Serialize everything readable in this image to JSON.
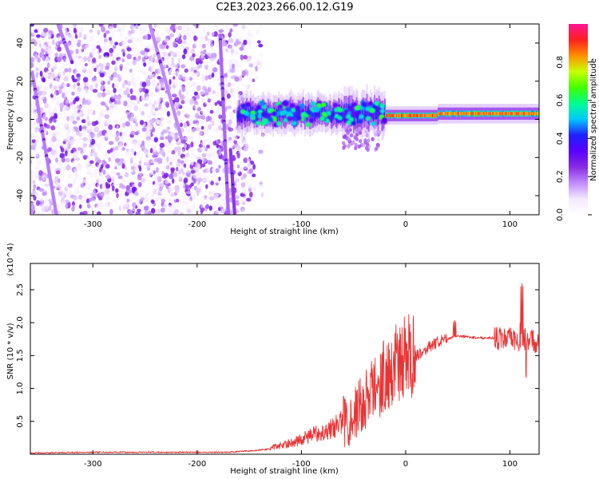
{
  "title": "C2E3.2023.266.00.12.G19",
  "colors": {
    "snr_line": "#e83434",
    "frame": "#000000",
    "background": "#ffffff"
  },
  "chart_data": [
    {
      "type": "heatmap",
      "xlabel": "Height of straight line (km)",
      "ylabel": "Frequency (Hz)",
      "xlim": [
        -360,
        128
      ],
      "ylim": [
        -50,
        50
      ],
      "x_ticks": [
        -300,
        -200,
        -100,
        0,
        100
      ],
      "y_ticks": [
        -40,
        -20,
        0,
        20,
        40
      ],
      "colorbar": {
        "label": "Normalized spectral amplitude",
        "range": [
          0.0,
          1.0
        ],
        "ticks": [
          0.0,
          0.2,
          0.4,
          0.6,
          0.8
        ],
        "tick_labels": [
          "0.0",
          "0.2",
          "0.4",
          "0.6",
          "0.8"
        ],
        "colormap": [
          "#ffffff",
          "#f4e9ff",
          "#c08cff",
          "#8a2be2",
          "#5a00ff",
          "#2020ff",
          "#00c8ff",
          "#00ff90",
          "#40ff00",
          "#c8ff00",
          "#ff9000",
          "#ff2020",
          "#ff1493"
        ]
      },
      "description_regions": {
        "noise_floor_x_range": [
          -360,
          -148
        ],
        "signal_x_range": [
          -165,
          128
        ],
        "signal_center_freq_hz": 2
      }
    },
    {
      "type": "line",
      "xlabel": "Height of straight line (km)",
      "ylabel": "SNR (10 * v/v)",
      "y_multiplier_label": "(x10^4)",
      "xlim": [
        -360,
        128
      ],
      "ylim": [
        0,
        2.9
      ],
      "x_ticks": [
        -300,
        -200,
        -100,
        0,
        100
      ],
      "y_ticks": [
        0.5,
        1.0,
        1.5,
        2.0,
        2.5
      ],
      "y_tick_labels": [
        "0.5",
        "1.0",
        "1.5",
        "2.0",
        "2.5"
      ],
      "series": [
        {
          "x": [
            -360,
            -300,
            -250,
            -200,
            -170,
            -150,
            -130,
            -120,
            -110,
            -100,
            -90,
            -80,
            -70,
            -60,
            -50,
            -40,
            -30,
            -20,
            -10,
            0,
            10,
            20,
            30,
            40,
            45,
            50,
            60,
            70,
            80,
            90,
            100,
            110,
            115,
            120,
            128
          ],
          "y": [
            0.02,
            0.03,
            0.03,
            0.03,
            0.03,
            0.05,
            0.08,
            0.12,
            0.15,
            0.2,
            0.26,
            0.3,
            0.35,
            0.45,
            0.55,
            0.75,
            0.95,
            1.15,
            1.3,
            1.4,
            1.5,
            1.6,
            1.7,
            1.75,
            1.78,
            1.8,
            1.78,
            1.77,
            1.77,
            1.76,
            1.75,
            1.7,
            1.75,
            1.72,
            1.72
          ]
        }
      ]
    }
  ]
}
